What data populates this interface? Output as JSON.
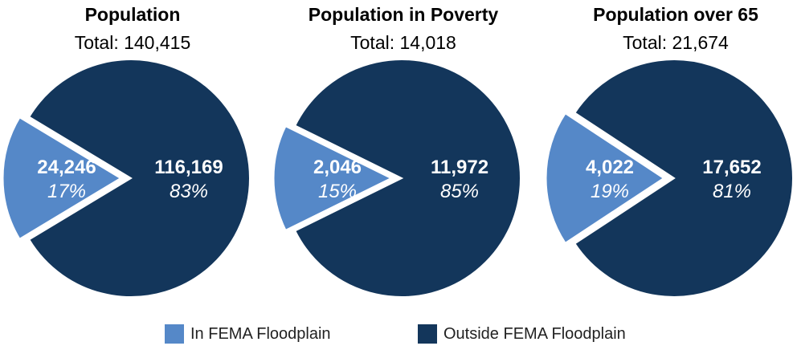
{
  "colors": {
    "in": "#5588C8",
    "out": "#13365B",
    "stroke": "#ffffff"
  },
  "legend": [
    {
      "label": "In FEMA Floodplain",
      "color": "#5588C8"
    },
    {
      "label": "Outside FEMA Floodplain",
      "color": "#13365B"
    }
  ],
  "chart_data": [
    {
      "type": "pie",
      "title": "Population",
      "subtitle": "Total: 140,415",
      "slices": [
        {
          "name": "In FEMA Floodplain",
          "value": 24246,
          "value_label": "24,246",
          "percent": 17,
          "percent_label": "17%"
        },
        {
          "name": "Outside FEMA Floodplain",
          "value": 116169,
          "value_label": "116,169",
          "percent": 83,
          "percent_label": "83%"
        }
      ]
    },
    {
      "type": "pie",
      "title": "Population in Poverty",
      "subtitle": "Total: 14,018",
      "slices": [
        {
          "name": "In FEMA Floodplain",
          "value": 2046,
          "value_label": "2,046",
          "percent": 15,
          "percent_label": "15%"
        },
        {
          "name": "Outside FEMA Floodplain",
          "value": 11972,
          "value_label": "11,972",
          "percent": 85,
          "percent_label": "85%"
        }
      ]
    },
    {
      "type": "pie",
      "title": "Population over 65",
      "subtitle": "Total: 21,674",
      "slices": [
        {
          "name": "In FEMA Floodplain",
          "value": 4022,
          "value_label": "4,022",
          "percent": 19,
          "percent_label": "19%"
        },
        {
          "name": "Outside FEMA Floodplain",
          "value": 17652,
          "value_label": "17,652",
          "percent": 81,
          "percent_label": "81%"
        }
      ]
    }
  ]
}
